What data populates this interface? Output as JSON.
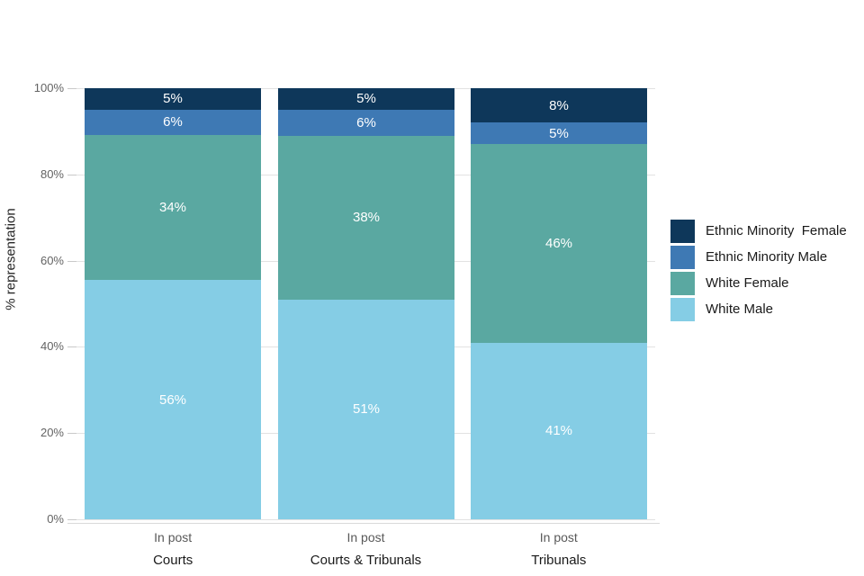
{
  "chart_data": {
    "type": "bar",
    "variant": "stacked-percent",
    "title": "",
    "ylabel": "% representation",
    "ylim": [
      0,
      100
    ],
    "ytick_values": [
      0,
      20,
      40,
      60,
      80,
      100
    ],
    "ytick_labels": [
      "0%",
      "20%",
      "40%",
      "60%",
      "80%",
      "100%"
    ],
    "grid": "horizontal",
    "legend_position": "right",
    "categories": [
      "Courts",
      "Courts & Tribunals",
      "Tribunals"
    ],
    "category_sublabel": "In post",
    "data_label_suffix": "%",
    "series": [
      {
        "name": "White Male",
        "color": "#85cde5",
        "values": [
          56,
          51,
          41
        ]
      },
      {
        "name": "White Female",
        "color": "#5aa8a1",
        "values": [
          34,
          38,
          46
        ]
      },
      {
        "name": "Ethnic Minority Male",
        "color": "#3e79b4",
        "values": [
          6,
          6,
          5
        ]
      },
      {
        "name": "Ethnic Minority  Female",
        "color": "#0e375a",
        "values": [
          5,
          5,
          8
        ]
      }
    ],
    "legend_order_top_to_bottom": [
      "Ethnic Minority  Female",
      "Ethnic Minority Male",
      "White Female",
      "White Male"
    ]
  }
}
